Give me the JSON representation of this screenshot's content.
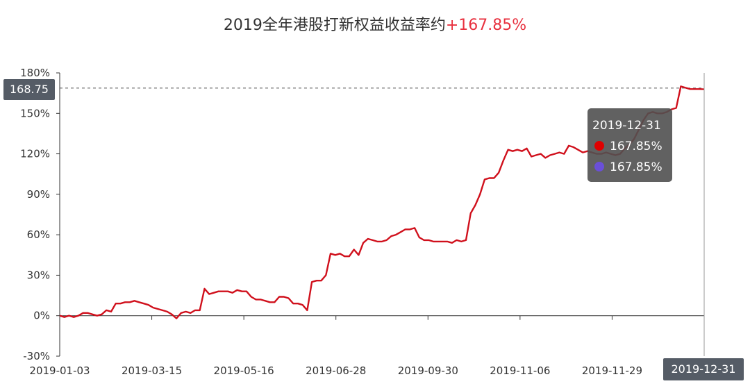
{
  "title": {
    "text": "2019全年港股打新权益收益率约",
    "highlight": "+167.85%",
    "highlight_color": "#e8313f"
  },
  "tooltip": {
    "date": "2019-12-31",
    "items": [
      {
        "value": "167.85%",
        "color": "#e00000"
      },
      {
        "value": "167.85%",
        "color": "#6a4fd8"
      }
    ]
  },
  "axis_pointer": {
    "y_label": "168.75",
    "x_label": "2019-12-31"
  },
  "chart_data": {
    "type": "line",
    "title": "2019全年港股打新权益收益率约+167.85%",
    "x_ticks": [
      "2019-01-03",
      "2019-03-15",
      "2019-05-16",
      "2019-06-28",
      "2019-09-30",
      "2019-11-06",
      "2019-11-29",
      "2019-12-31"
    ],
    "y_ticks": [
      "-30%",
      "0%",
      "30%",
      "60%",
      "90%",
      "120%",
      "150%",
      "180%"
    ],
    "ylim": [
      -30,
      180
    ],
    "y_unit": "%",
    "reference_value": 168.75,
    "grid": false,
    "line_color": "#d0101c",
    "series": [
      {
        "x": [
          0,
          1,
          2,
          3,
          4,
          5,
          6,
          7,
          8,
          9,
          10,
          11,
          12,
          13,
          14,
          15,
          16,
          17,
          18,
          19,
          20,
          21,
          22,
          23,
          24,
          25,
          26,
          27,
          28,
          29,
          30,
          31,
          32,
          33,
          34,
          35,
          36,
          37,
          38,
          39,
          40,
          41,
          42,
          43,
          44,
          45,
          46,
          47,
          48,
          49,
          50,
          51,
          52,
          53,
          54,
          55,
          56,
          57,
          58,
          59,
          60,
          61,
          62,
          63,
          64,
          65,
          66,
          67,
          68,
          69,
          70,
          71,
          72,
          73,
          74,
          75,
          76,
          77,
          78,
          79,
          80,
          81,
          82,
          83,
          84,
          85,
          86,
          87,
          88,
          89,
          90,
          91,
          92,
          93,
          94,
          95,
          96,
          97,
          98,
          99,
          100,
          101,
          102,
          103,
          104,
          105,
          106,
          107,
          108,
          109,
          110,
          111,
          112,
          113,
          114,
          115,
          116,
          117,
          118,
          119,
          120,
          121,
          122,
          123,
          124,
          125,
          126,
          127,
          128,
          129,
          130,
          131,
          132,
          133,
          134,
          135,
          136,
          137,
          138
        ],
        "values": [
          0,
          -1,
          0,
          -1,
          0,
          2,
          2,
          1,
          0,
          1,
          4,
          3,
          9,
          9,
          10,
          10,
          11,
          10,
          9,
          8,
          6,
          5,
          4,
          3,
          1,
          -2,
          2,
          3,
          2,
          4,
          4,
          20,
          16,
          17,
          18,
          18,
          18,
          17,
          19,
          18,
          18,
          14,
          12,
          12,
          11,
          10,
          10,
          14,
          14,
          13,
          9,
          9,
          8,
          4,
          25,
          26,
          26,
          30,
          46,
          45,
          46,
          44,
          44,
          49,
          45,
          54,
          57,
          56,
          55,
          55,
          56,
          59,
          60,
          62,
          64,
          64,
          65,
          58,
          56,
          56,
          55,
          55,
          55,
          55,
          54,
          56,
          55,
          56,
          76,
          82,
          90,
          101,
          102,
          102,
          106,
          115,
          123,
          122,
          123,
          122,
          124,
          118,
          119,
          120,
          117,
          119,
          120,
          121,
          120,
          126,
          125,
          123,
          121,
          122,
          121,
          120,
          120,
          121,
          120,
          119,
          120,
          124,
          127,
          131,
          138,
          145,
          150,
          151,
          150,
          150,
          151,
          153,
          154,
          170,
          169,
          168,
          168,
          168,
          167.85
        ]
      }
    ]
  }
}
